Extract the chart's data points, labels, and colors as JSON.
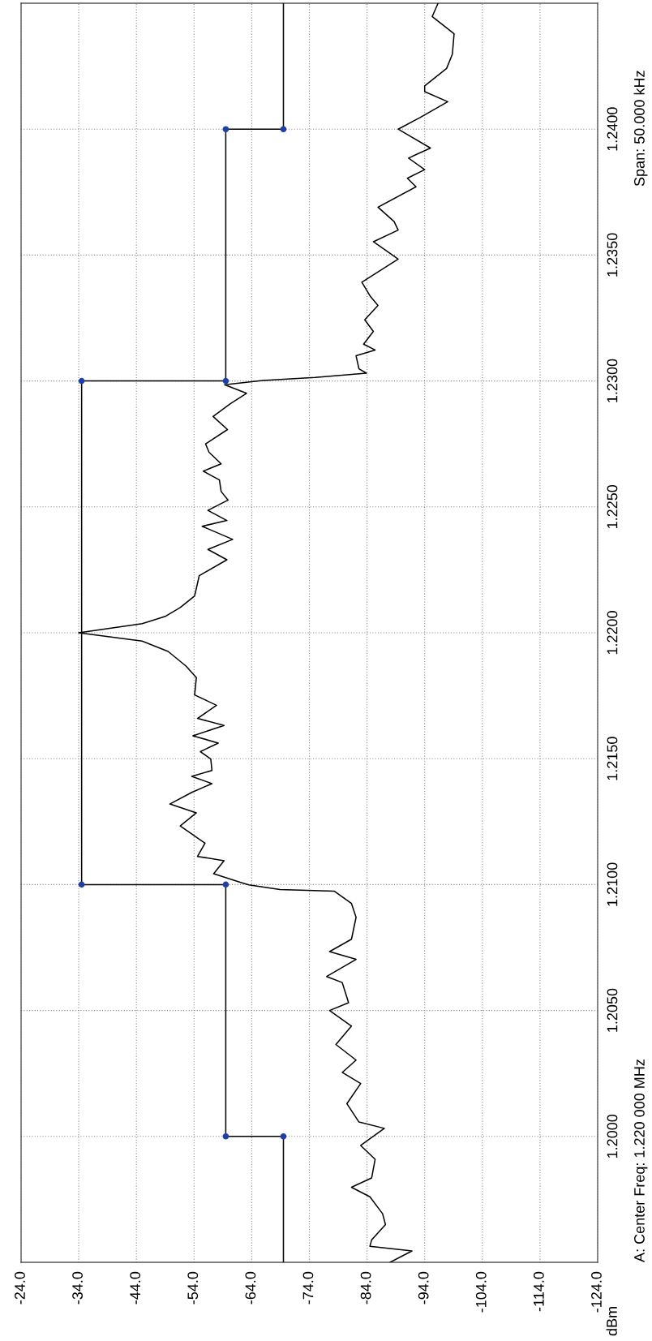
{
  "chart_data": {
    "type": "line",
    "orientation": "horizontal",
    "annotations": [
      "A: Center Freq: 1.220 000 MHz",
      "Span: 50.000 kHz",
      "dBm"
    ],
    "xlim": [
      -24,
      -124
    ],
    "xticks": [
      {
        "value": -24,
        "label": "-24.0"
      },
      {
        "value": -34,
        "label": "-34.0"
      },
      {
        "value": -44,
        "label": "-44.0"
      },
      {
        "value": -54,
        "label": "-54.0"
      },
      {
        "value": -64,
        "label": "-64.0"
      },
      {
        "value": -74,
        "label": "-74.0"
      },
      {
        "value": -84,
        "label": "-84.0"
      },
      {
        "value": -94,
        "label": "-94.0"
      },
      {
        "value": -104,
        "label": "-104.0"
      },
      {
        "value": -114,
        "label": "-114.0"
      },
      {
        "value": -124,
        "label": "-124.0"
      }
    ],
    "ylim": [
      1.195,
      1.245
    ],
    "yticks": [
      {
        "value": 1.2,
        "label": "1.2000"
      },
      {
        "value": 1.205,
        "label": "1.2050"
      },
      {
        "value": 1.21,
        "label": "1.2100"
      },
      {
        "value": 1.215,
        "label": "1.2150"
      },
      {
        "value": 1.22,
        "label": "1.2200"
      },
      {
        "value": 1.225,
        "label": "1.2250"
      },
      {
        "value": 1.23,
        "label": "1.2300"
      },
      {
        "value": 1.235,
        "label": "1.2350"
      },
      {
        "value": 1.24,
        "label": "1.2400"
      }
    ],
    "grid": true,
    "series": [
      {
        "type": "line",
        "color": "#000000",
        "marker": "none",
        "x": [
          1.195,
          1.19545,
          1.19564,
          1.19589,
          1.1965,
          1.19693,
          1.1976,
          1.19798,
          1.19835,
          1.19909,
          1.19964,
          1.20032,
          1.20057,
          1.2013,
          1.2021,
          1.20254,
          1.20303,
          1.20365,
          1.20438,
          1.205,
          1.20531,
          1.20611,
          1.20635,
          1.20703,
          1.20734,
          1.20783,
          1.2087,
          1.20925,
          1.20974,
          1.2098,
          1.20999,
          1.21008,
          1.21043,
          1.21095,
          1.21112,
          1.21164,
          1.21233,
          1.21285,
          1.2132,
          1.21366,
          1.21401,
          1.2143,
          1.21453,
          1.21499,
          1.21528,
          1.21562,
          1.21591,
          1.21632,
          1.2166,
          1.21712,
          1.21753,
          1.21822,
          1.21868,
          1.21926,
          1.21967,
          1.22,
          1.22036,
          1.22065,
          1.221,
          1.22146,
          1.22227,
          1.2229,
          1.22331,
          1.22371,
          1.22423,
          1.22446,
          1.22486,
          1.22527,
          1.22561,
          1.22607,
          1.22642,
          1.22671,
          1.22717,
          1.2275,
          1.22807,
          1.22859,
          1.2291,
          1.22951,
          1.22985,
          1.23002,
          1.23014,
          1.23031,
          1.23048,
          1.231,
          1.23123,
          1.23146,
          1.23197,
          1.23243,
          1.233,
          1.23335,
          1.23392,
          1.23484,
          1.23553,
          1.23599,
          1.23633,
          1.2369,
          1.23771,
          1.23805,
          1.23839,
          1.23885,
          1.23925,
          1.24,
          1.24046,
          1.24109,
          1.24149,
          1.24172,
          1.24241,
          1.24298,
          1.24379,
          1.24447,
          1.24499
        ],
        "values": [
          -88,
          -91.8,
          -84.5,
          -84.8,
          -87.2,
          -86.7,
          -84.5,
          -81.3,
          -84.8,
          -85.4,
          -82.9,
          -87,
          -82.6,
          -80.5,
          -82.9,
          -79.7,
          -82.1,
          -78.6,
          -81.3,
          -77.5,
          -80.8,
          -79.7,
          -77,
          -82.1,
          -77.5,
          -81.3,
          -82.1,
          -81.3,
          -78.3,
          -68.9,
          -63.5,
          -62.2,
          -57.4,
          -59.2,
          -54.6,
          -55.9,
          -51.6,
          -54.4,
          -49.8,
          -53.6,
          -57.1,
          -53.6,
          -57.1,
          -56.9,
          -55.1,
          -58.2,
          -53.8,
          -59.2,
          -54.6,
          -57.9,
          -54.1,
          -54.4,
          -52.6,
          -49.5,
          -45,
          -34,
          -45,
          -49,
          -51.6,
          -54.1,
          -54.9,
          -59.7,
          -56.4,
          -60.7,
          -55.4,
          -59.7,
          -56.4,
          -59.9,
          -58.7,
          -58.4,
          -55.6,
          -58.7,
          -56.6,
          -56,
          -59.8,
          -57.3,
          -60.3,
          -63.1,
          -59.3,
          -65.9,
          -75,
          -83.9,
          -82.6,
          -82.1,
          -85.4,
          -83.4,
          -85.1,
          -83.6,
          -85.9,
          -84.6,
          -83.1,
          -89.4,
          -85.1,
          -89.4,
          -88.7,
          -85.9,
          -92.5,
          -91,
          -94,
          -91.2,
          -95,
          -89.4,
          -93.2,
          -98,
          -94,
          -94,
          -97.8,
          -98.8,
          -99.1,
          -95.3,
          -96.3
        ]
      },
      {
        "type": "line",
        "color": "#000000",
        "marker": "none",
        "x": [
          1.195,
          1.2,
          1.2,
          1.21,
          1.21,
          1.23,
          1.23,
          1.24,
          1.24,
          1.245
        ],
        "values": [
          -69.5,
          -69.5,
          -59.5,
          -59.5,
          -34.5,
          -34.5,
          -59.5,
          -59.5,
          -69.5,
          -69.5
        ]
      },
      {
        "type": "scatter",
        "color": "#1f3fa8",
        "marker": "circle",
        "x": [
          1.2,
          1.2,
          1.21,
          1.21,
          1.23,
          1.23,
          1.24,
          1.24
        ],
        "values": [
          -69.5,
          -59.5,
          -59.5,
          -34.5,
          -34.5,
          -59.5,
          -59.5,
          -69.5
        ]
      }
    ]
  }
}
